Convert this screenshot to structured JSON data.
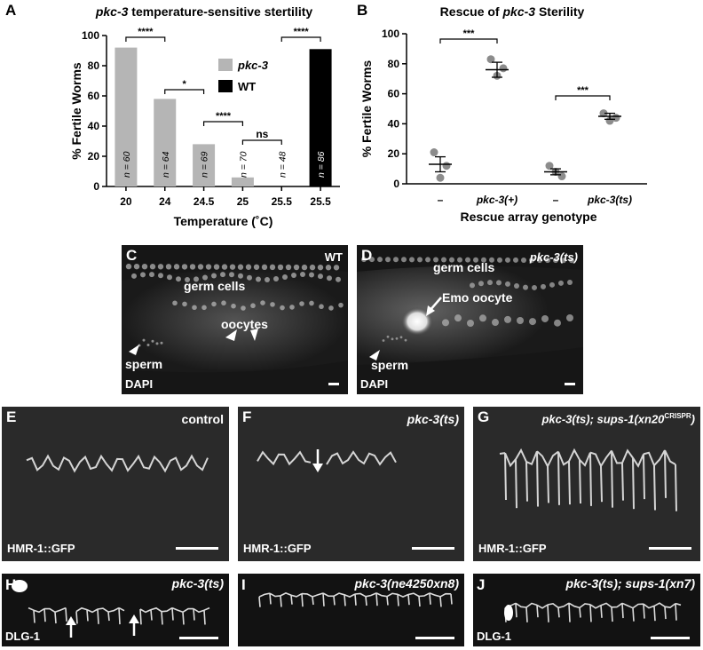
{
  "panels": {
    "A": {
      "letter": "A",
      "title_gene": "pkc-3",
      "title_rest": " temperature-sensitive stertility",
      "chart_data": {
        "type": "bar",
        "categories": [
          "20",
          "24",
          "24.5",
          "25",
          "25.5",
          "25.5"
        ],
        "values": [
          92,
          58,
          28,
          6,
          0,
          91
        ],
        "n_labels": [
          "n = 60",
          "n = 64",
          "n = 69",
          "n = 70",
          "n = 48",
          "n = 86"
        ],
        "bar_colors": [
          "#b5b5b5",
          "#b5b5b5",
          "#b5b5b5",
          "#b5b5b5",
          "#b5b5b5",
          "#000000"
        ],
        "ylabel": "% Fertile Worms",
        "xlabel": "Temperature (˚C)",
        "ylim": [
          0,
          100
        ],
        "yticks": [
          "0",
          "20",
          "40",
          "60",
          "80",
          "100"
        ],
        "legend": [
          {
            "label": "pkc-3",
            "color": "#b5b5b5"
          },
          {
            "label": "WT",
            "color": "#000000"
          }
        ],
        "significance": [
          {
            "from": 0,
            "to": 1,
            "label": "****"
          },
          {
            "from": 1,
            "to": 2,
            "label": "*"
          },
          {
            "from": 2,
            "to": 3,
            "label": "****"
          },
          {
            "from": 3,
            "to": 4,
            "label": "ns"
          },
          {
            "from": 4,
            "to": 5,
            "label": "****"
          }
        ]
      }
    },
    "B": {
      "letter": "B",
      "title_prefix": "Rescue of ",
      "title_gene": "pkc-3",
      "title_suffix": " Sterility",
      "chart_data": {
        "type": "scatter",
        "categories": [
          "–",
          "pkc-3(+)",
          "–",
          "pkc-3(ts)"
        ],
        "points": [
          [
            21,
            12,
            4
          ],
          [
            83,
            72,
            77
          ],
          [
            12,
            8,
            5
          ],
          [
            47,
            42,
            44
          ]
        ],
        "means": [
          13,
          76,
          8,
          45
        ],
        "sems": [
          5,
          5,
          2,
          2
        ],
        "ylabel": "% Fertile Worms",
        "xlabel": "Rescue array genotype",
        "ylim": [
          0,
          100
        ],
        "yticks": [
          "0",
          "20",
          "40",
          "60",
          "80",
          "100"
        ],
        "significance": [
          {
            "from": 0,
            "to": 1,
            "label": "***"
          },
          {
            "from": 2,
            "to": 3,
            "label": "***"
          }
        ]
      }
    },
    "C": {
      "letter": "C",
      "top_right": "WT",
      "germ_cells": "germ cells",
      "oocytes": "oocytes",
      "sperm": "sperm",
      "stain": "DAPI"
    },
    "D": {
      "letter": "D",
      "top_right": "pkc-3(ts)",
      "germ_cells": "germ cells",
      "emo": "Emo oocyte",
      "sperm": "sperm",
      "stain": "DAPI"
    },
    "E": {
      "letter": "E",
      "top_right": "control",
      "marker": "HMR-1::GFP"
    },
    "F": {
      "letter": "F",
      "top_right": "pkc-3(ts)",
      "marker": "HMR-1::GFP"
    },
    "G": {
      "letter": "G",
      "top_right_main": "pkc-3(ts); sups-1(xn20",
      "top_right_sup": "CRISPR",
      "top_right_end": ")",
      "marker": "HMR-1::GFP"
    },
    "H": {
      "letter": "H",
      "top_right": "pkc-3(ts)",
      "marker": "DLG-1"
    },
    "I": {
      "letter": "I",
      "top_right": "pkc-3(ne4250xn8)",
      "marker": "DLG-1"
    },
    "J": {
      "letter": "J",
      "top_right": "pkc-3(ts); sups-1(xn7)",
      "marker": "DLG-1"
    }
  }
}
